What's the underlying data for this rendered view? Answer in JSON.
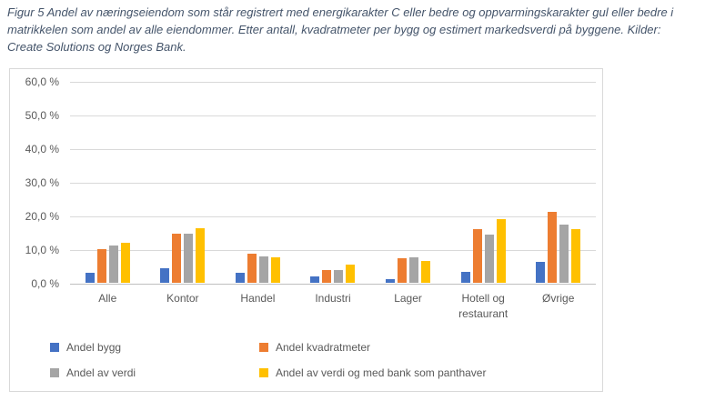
{
  "title": "Figur 5 Andel av næringseiendom som står registrert med energikarakter C eller bedre og oppvarmingskarakter gul eller bedre i matrikkelen som andel av alle eiendommer. Etter antall, kvadratmeter per bygg og estimert markedsverdi på byggene. Kilder: Create Solutions og Norges Bank.",
  "chart_data": {
    "type": "bar",
    "title": "",
    "xlabel": "",
    "ylabel": "",
    "categories": [
      "Alle",
      "Kontor",
      "Handel",
      "Industri",
      "Lager",
      "Hotell og restaurant",
      "Øvrige"
    ],
    "series": [
      {
        "name": "Andel bygg",
        "color": "#4472C4",
        "values": [
          2.9,
          4.4,
          2.9,
          1.8,
          1.2,
          3.2,
          6.1
        ]
      },
      {
        "name": "Andel kvadratmeter",
        "color": "#ED7D31",
        "values": [
          10.0,
          14.6,
          8.6,
          3.8,
          7.4,
          16.0,
          21.2
        ]
      },
      {
        "name": "Andel av verdi",
        "color": "#A5A5A5",
        "values": [
          11.1,
          14.6,
          7.8,
          3.7,
          7.6,
          14.3,
          17.2
        ]
      },
      {
        "name": "Andel av verdi og med bank som panthaver",
        "color": "#FFC000",
        "values": [
          11.8,
          16.2,
          7.7,
          5.3,
          6.5,
          19.0,
          16.0
        ]
      }
    ],
    "ylim": [
      0,
      60
    ],
    "y_tick_step": 10,
    "y_tick_labels": [
      "0,0 %",
      "10,0 %",
      "20,0 %",
      "30,0 %",
      "40,0 %",
      "50,0 %",
      "60,0 %"
    ],
    "grid": true,
    "legend_position": "bottom"
  }
}
